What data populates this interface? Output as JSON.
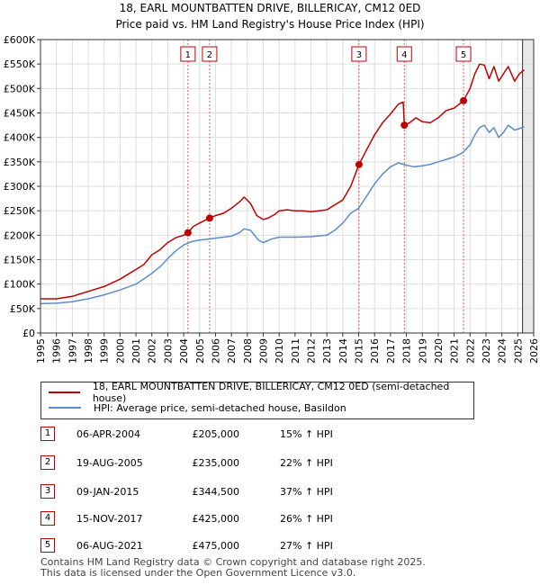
{
  "header": {
    "title_line1": "18, EARL MOUNTBATTEN DRIVE, BILLERICAY, CM12 0ED",
    "title_line2": "Price paid vs. HM Land Registry's House Price Index (HPI)"
  },
  "legend": {
    "property_label": "18, EARL MOUNTBATTEN DRIVE, BILLERICAY, CM12 0ED (semi-detached house)",
    "hpi_label": "HPI: Average price, semi-detached house, Basildon"
  },
  "sales": [
    {
      "num": "1",
      "date": "06-APR-2004",
      "price": "£205,000",
      "hpi": "15% ↑ HPI"
    },
    {
      "num": "2",
      "date": "19-AUG-2005",
      "price": "£235,000",
      "hpi": "22% ↑ HPI"
    },
    {
      "num": "3",
      "date": "09-JAN-2015",
      "price": "£344,500",
      "hpi": "37% ↑ HPI"
    },
    {
      "num": "4",
      "date": "15-NOV-2017",
      "price": "£425,000",
      "hpi": "26% ↑ HPI"
    },
    {
      "num": "5",
      "date": "06-AUG-2021",
      "price": "£475,000",
      "hpi": "27% ↑ HPI"
    }
  ],
  "footer": {
    "line1": "Contains HM Land Registry data © Crown copyright and database right 2025.",
    "line2": "This data is licensed under the Open Government Licence v3.0."
  },
  "colors": {
    "property_line": "#c00000",
    "hpi_line": "#5b8cc8",
    "marker_vline": "#e06060",
    "grid": "#dddddd",
    "future_shade": "#e8e8e8"
  },
  "chart_data": {
    "type": "line",
    "title": "Price paid vs. HM Land Registry's House Price Index (HPI)",
    "xlim": [
      1995,
      2026
    ],
    "ylim": [
      0,
      600000
    ],
    "x_ticks": [
      "1995",
      "1996",
      "1997",
      "1998",
      "1999",
      "2000",
      "2001",
      "2002",
      "2003",
      "2004",
      "2005",
      "2006",
      "2007",
      "2008",
      "2009",
      "2010",
      "2011",
      "2012",
      "2013",
      "2014",
      "2015",
      "2016",
      "2017",
      "2018",
      "2019",
      "2020",
      "2021",
      "2022",
      "2023",
      "2024",
      "2025",
      "2026"
    ],
    "y_ticks": [
      {
        "value": 0,
        "label": "£0"
      },
      {
        "value": 50000,
        "label": "£50K"
      },
      {
        "value": 100000,
        "label": "£100K"
      },
      {
        "value": 150000,
        "label": "£150K"
      },
      {
        "value": 200000,
        "label": "£200K"
      },
      {
        "value": 250000,
        "label": "£250K"
      },
      {
        "value": 300000,
        "label": "£300K"
      },
      {
        "value": 350000,
        "label": "£350K"
      },
      {
        "value": 400000,
        "label": "£400K"
      },
      {
        "value": 450000,
        "label": "£450K"
      },
      {
        "value": 500000,
        "label": "£500K"
      },
      {
        "value": 550000,
        "label": "£550K"
      },
      {
        "value": 600000,
        "label": "£600K"
      }
    ],
    "future_from": 2025.3,
    "series": [
      {
        "name": "18, EARL MOUNTBATTEN DRIVE, BILLERICAY, CM12 0ED (semi-detached house)",
        "x": [
          1995.0,
          1996.0,
          1997.0,
          1997.5,
          1998.0,
          1999.0,
          2000.0,
          2000.5,
          2001.0,
          2001.5,
          2002.0,
          2002.5,
          2003.0,
          2003.5,
          2004.0,
          2004.27,
          2004.6,
          2005.0,
          2005.63,
          2006.0,
          2006.5,
          2007.0,
          2007.5,
          2007.8,
          2008.2,
          2008.6,
          2009.0,
          2009.3,
          2009.7,
          2010.0,
          2010.5,
          2011.0,
          2011.5,
          2012.0,
          2012.5,
          2013.0,
          2013.5,
          2014.0,
          2014.5,
          2015.02,
          2015.5,
          2016.0,
          2016.5,
          2017.0,
          2017.5,
          2017.8,
          2017.87,
          2018.2,
          2018.6,
          2019.0,
          2019.5,
          2020.0,
          2020.5,
          2021.0,
          2021.4,
          2021.59,
          2022.0,
          2022.3,
          2022.6,
          2022.9,
          2023.2,
          2023.5,
          2023.8,
          2024.1,
          2024.4,
          2024.8,
          2025.1,
          2025.4
        ],
        "values": [
          70000,
          70000,
          75000,
          80000,
          85000,
          95000,
          110000,
          120000,
          130000,
          140000,
          160000,
          170000,
          185000,
          195000,
          200000,
          205000,
          218000,
          225000,
          235000,
          240000,
          245000,
          255000,
          268000,
          278000,
          265000,
          240000,
          232000,
          235000,
          242000,
          250000,
          252000,
          250000,
          250000,
          248000,
          250000,
          252000,
          262000,
          272000,
          300000,
          344500,
          375000,
          405000,
          430000,
          448000,
          468000,
          472000,
          425000,
          430000,
          440000,
          432000,
          430000,
          440000,
          455000,
          460000,
          470000,
          475000,
          500000,
          530000,
          550000,
          548000,
          520000,
          545000,
          515000,
          530000,
          545000,
          515000,
          530000,
          538000
        ]
      },
      {
        "name": "HPI: Average price, semi-detached house, Basildon",
        "x": [
          1995.0,
          1996.0,
          1997.0,
          1998.0,
          1999.0,
          2000.0,
          2001.0,
          2002.0,
          2002.5,
          2003.0,
          2003.5,
          2004.0,
          2004.5,
          2005.0,
          2005.5,
          2006.0,
          2007.0,
          2007.5,
          2007.8,
          2008.2,
          2008.7,
          2009.0,
          2009.5,
          2010.0,
          2011.0,
          2012.0,
          2013.0,
          2013.5,
          2014.0,
          2014.5,
          2015.0,
          2015.5,
          2016.0,
          2016.5,
          2017.0,
          2017.5,
          2018.0,
          2018.5,
          2019.0,
          2019.5,
          2020.0,
          2020.5,
          2021.0,
          2021.5,
          2022.0,
          2022.3,
          2022.6,
          2022.9,
          2023.2,
          2023.5,
          2023.8,
          2024.1,
          2024.4,
          2024.8,
          2025.1,
          2025.4
        ],
        "values": [
          60000,
          61000,
          64000,
          70000,
          78000,
          88000,
          100000,
          122000,
          135000,
          152000,
          168000,
          180000,
          187000,
          190000,
          192000,
          194000,
          198000,
          205000,
          213000,
          210000,
          190000,
          185000,
          192000,
          196000,
          196000,
          197000,
          200000,
          210000,
          225000,
          245000,
          255000,
          280000,
          305000,
          325000,
          340000,
          348000,
          343000,
          340000,
          342000,
          345000,
          350000,
          355000,
          360000,
          368000,
          385000,
          405000,
          420000,
          425000,
          410000,
          420000,
          400000,
          410000,
          425000,
          415000,
          418000,
          422000
        ]
      }
    ],
    "sale_markers": [
      {
        "label": "1",
        "x": 2004.27,
        "y": 205000
      },
      {
        "label": "2",
        "x": 2005.63,
        "y": 235000
      },
      {
        "label": "3",
        "x": 2015.02,
        "y": 344500
      },
      {
        "label": "4",
        "x": 2017.87,
        "y": 425000
      },
      {
        "label": "5",
        "x": 2021.59,
        "y": 475000
      }
    ]
  }
}
